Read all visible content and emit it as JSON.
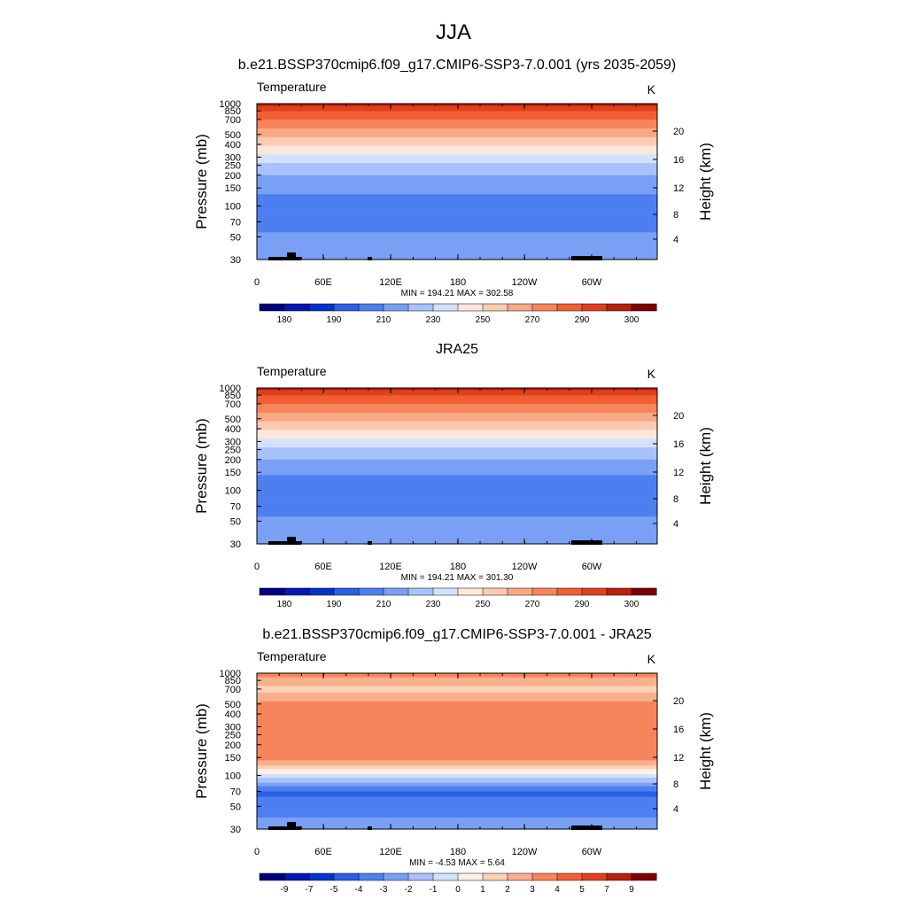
{
  "figure": {
    "title": "JJA"
  },
  "chart_data": [
    {
      "type": "heatmap",
      "title": "b.e21.BSSP370cmip6.f09_g17.CMIP6-SSP3-7.0.001 (yrs 2035-2059)",
      "left_label": "Temperature",
      "right_label": "K",
      "xlabel": "",
      "ylabel": "Pressure (mb)",
      "ylabel_right": "Height (km)",
      "x_ticks": [
        "0",
        "60E",
        "120E",
        "180",
        "120W",
        "60W"
      ],
      "y_ticks": [
        "30",
        "50",
        "70",
        "100",
        "150",
        "200",
        "250",
        "300",
        "400",
        "500",
        "700",
        "850",
        "1000"
      ],
      "y_ticks_right": [
        "20",
        "16",
        "12",
        "8",
        "4"
      ],
      "stats": "MIN = 194.21  MAX = 302.58",
      "colorbar_labels": [
        "180",
        "190",
        "210",
        "230",
        "250",
        "270",
        "290",
        "300"
      ],
      "profile": {
        "pressure": [
          30,
          50,
          70,
          100,
          150,
          200,
          250,
          300,
          400,
          500,
          700,
          850,
          1000
        ],
        "value": [
          218,
          212,
          206,
          202,
          213,
          220,
          228,
          236,
          250,
          262,
          280,
          290,
          297
        ]
      }
    },
    {
      "type": "heatmap",
      "title": "JRA25",
      "left_label": "Temperature",
      "right_label": "K",
      "xlabel": "",
      "ylabel": "Pressure (mb)",
      "ylabel_right": "Height (km)",
      "x_ticks": [
        "0",
        "60E",
        "120E",
        "180",
        "120W",
        "60W"
      ],
      "y_ticks": [
        "30",
        "50",
        "70",
        "100",
        "150",
        "200",
        "250",
        "300",
        "400",
        "500",
        "700",
        "850",
        "1000"
      ],
      "y_ticks_right": [
        "20",
        "16",
        "12",
        "8",
        "4"
      ],
      "stats": "MIN = 194.21  MAX = 301.30",
      "colorbar_labels": [
        "180",
        "190",
        "210",
        "230",
        "250",
        "270",
        "290",
        "300"
      ],
      "profile": {
        "pressure": [
          30,
          50,
          70,
          100,
          150,
          200,
          250,
          300,
          400,
          500,
          700,
          850,
          1000
        ],
        "value": [
          218,
          212,
          206,
          200,
          212,
          220,
          228,
          236,
          250,
          262,
          280,
          290,
          297
        ]
      }
    },
    {
      "type": "heatmap",
      "title": "b.e21.BSSP370cmip6.f09_g17.CMIP6-SSP3-7.0.001 - JRA25",
      "left_label": "Temperature",
      "right_label": "K",
      "xlabel": "",
      "ylabel": "Pressure (mb)",
      "ylabel_right": "Height (km)",
      "x_ticks": [
        "0",
        "60E",
        "120E",
        "180",
        "120W",
        "60W"
      ],
      "y_ticks": [
        "30",
        "50",
        "70",
        "100",
        "150",
        "200",
        "250",
        "300",
        "400",
        "500",
        "700",
        "850",
        "1000"
      ],
      "y_ticks_right": [
        "20",
        "16",
        "12",
        "8",
        "4"
      ],
      "stats": "MIN =  -4.53  MAX =   5.64",
      "colorbar_labels": [
        "-9",
        "-7",
        "-5",
        "-4",
        "-3",
        "-2",
        "-1",
        "0",
        "1",
        "2",
        "3",
        "4",
        "5",
        "7",
        "9"
      ],
      "profile": {
        "pressure": [
          30,
          50,
          70,
          100,
          150,
          200,
          250,
          300,
          400,
          500,
          700,
          850,
          1000
        ],
        "value": [
          -2.5,
          -3.5,
          -4.2,
          -0.5,
          3.5,
          3.5,
          3.5,
          3.5,
          3.5,
          3.5,
          1.5,
          2.5,
          3.5
        ]
      }
    }
  ]
}
